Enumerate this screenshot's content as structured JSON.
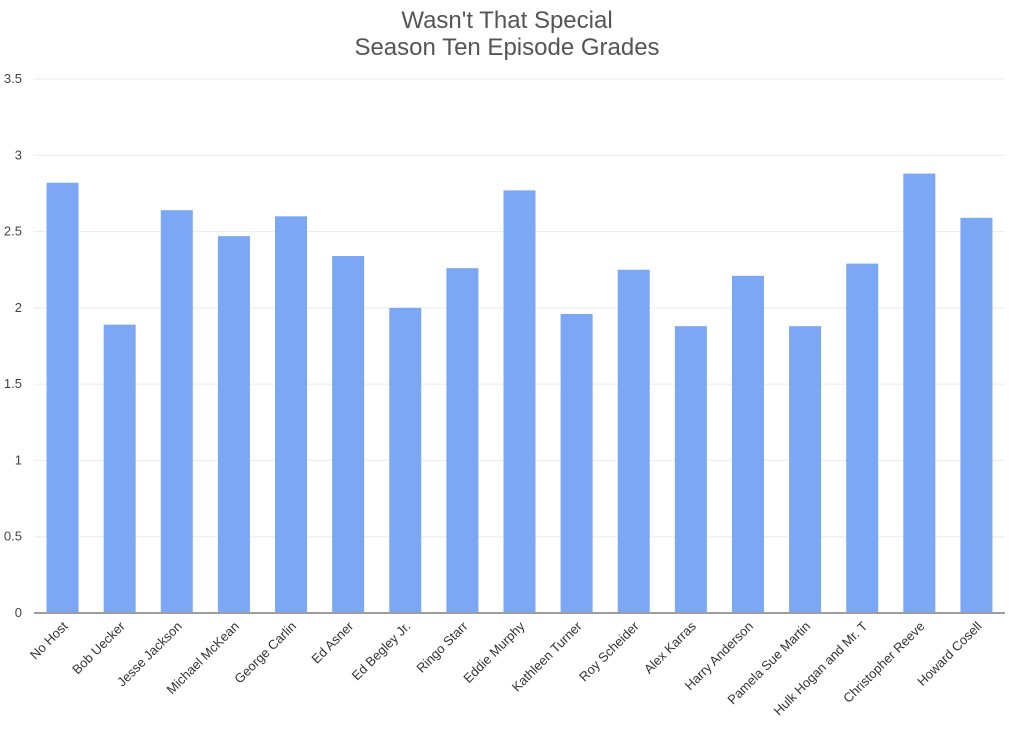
{
  "chart_data": {
    "type": "bar",
    "title_lines": [
      "Wasn't That Special",
      "Season Ten Episode Grades"
    ],
    "xlabel": "",
    "ylabel": "",
    "ylim": [
      0,
      3.5
    ],
    "yticks": [
      "0",
      "0.5",
      "1",
      "1.5",
      "2",
      "2.5",
      "3",
      "3.5"
    ],
    "grid": true,
    "legend": "none",
    "bar_color": "#7BA7F5",
    "categories": [
      "No Host",
      "Bob Uecker",
      "Jesse Jackson",
      "Michael McKean",
      "George Carlin",
      "Ed Asner",
      "Ed Begley Jr.",
      "Ringo Starr",
      "Eddie Murphy",
      "Kathleen Turner",
      "Roy Scheider",
      "Alex Karras",
      "Harry Anderson",
      "Pamela Sue Martin",
      "Hulk Hogan and Mr. T",
      "Christopher Reeve",
      "Howard Cosell"
    ],
    "values": [
      2.82,
      1.89,
      2.64,
      2.47,
      2.6,
      2.34,
      2.0,
      2.26,
      2.77,
      1.96,
      2.25,
      1.88,
      2.21,
      1.88,
      2.29,
      2.88,
      2.59
    ]
  }
}
